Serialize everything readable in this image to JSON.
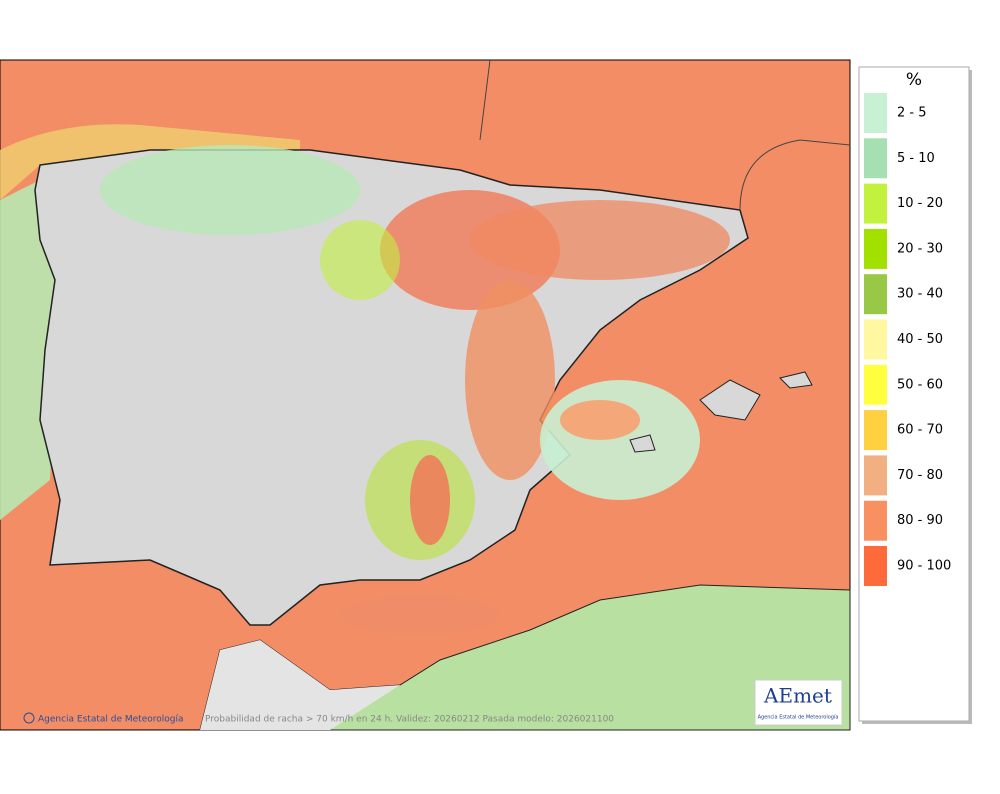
{
  "legend": {
    "title": "%",
    "items": [
      {
        "label": "2 - 5",
        "color": "#c8f0d2"
      },
      {
        "label": "5 - 10",
        "color": "#a6dfb2"
      },
      {
        "label": "10 - 20",
        "color": "#c2f23e"
      },
      {
        "label": "20 - 30",
        "color": "#a2e000"
      },
      {
        "label": "30 - 40",
        "color": "#98c845"
      },
      {
        "label": "40 - 50",
        "color": "#fff8a0"
      },
      {
        "label": "50 - 60",
        "color": "#ffff40"
      },
      {
        "label": "60 - 70",
        "color": "#ffd040"
      },
      {
        "label": "70 - 80",
        "color": "#f2b082"
      },
      {
        "label": "80 - 90",
        "color": "#f89062"
      },
      {
        "label": "90 - 100",
        "color": "#ff6a3a"
      }
    ]
  },
  "footer": {
    "credit": "Agencia Estatal de Meteorología",
    "caption": "Probabilidad de racha > 70 km/h en 24 h. Validez: 20260212 Pasada modelo: 2026021100"
  },
  "logo": {
    "text": "AEmet",
    "subtitle": "Agencia Estatal de Meteorología"
  }
}
